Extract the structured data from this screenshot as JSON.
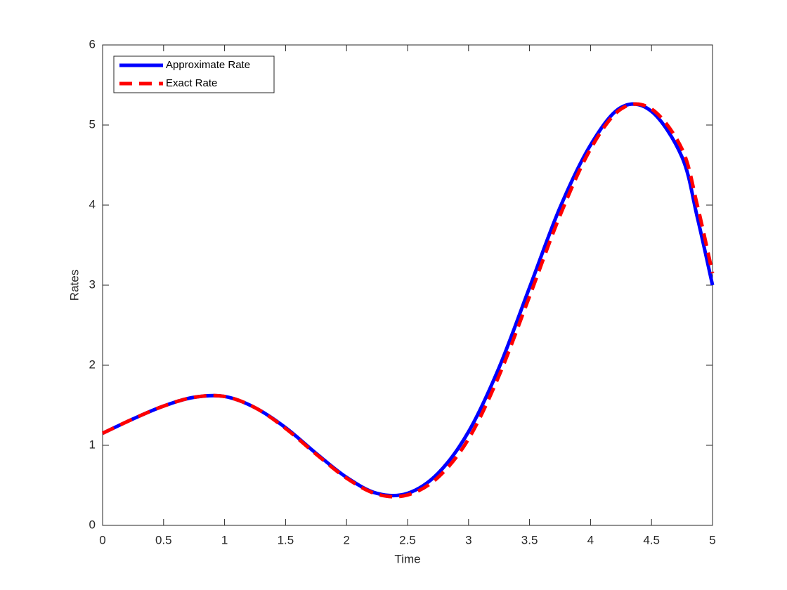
{
  "chart_data": {
    "type": "line",
    "x_label": "Time",
    "y_label": "Rates",
    "x": [
      0,
      0.25,
      0.5,
      0.75,
      1,
      1.25,
      1.5,
      1.75,
      2,
      2.25,
      2.5,
      2.75,
      3,
      3.25,
      3.5,
      3.75,
      4,
      4.25,
      4.5,
      4.75,
      4.875,
      5
    ],
    "series": [
      {
        "name": "Approximate Rate",
        "color": "#0000ff",
        "dash": false,
        "values": [
          1.15,
          1.33,
          1.49,
          1.6,
          1.61,
          1.47,
          1.22,
          0.9,
          0.6,
          0.4,
          0.4,
          0.65,
          1.17,
          1.97,
          2.97,
          3.97,
          4.75,
          5.22,
          5.17,
          4.6,
          3.85,
          3.0
        ]
      },
      {
        "name": "Exact Rate",
        "color": "#ff0000",
        "dash": true,
        "values": [
          1.15,
          1.33,
          1.49,
          1.6,
          1.61,
          1.47,
          1.21,
          0.89,
          0.59,
          0.39,
          0.38,
          0.6,
          1.08,
          1.87,
          2.86,
          3.87,
          4.7,
          5.2,
          5.2,
          4.7,
          4.0,
          3.15
        ]
      }
    ],
    "xlim": [
      0,
      5
    ],
    "xticks": [
      0,
      0.5,
      1,
      1.5,
      2,
      2.5,
      3,
      3.5,
      4,
      4.5,
      5
    ],
    "ylim": [
      0,
      6
    ],
    "yticks": [
      0,
      1,
      2,
      3,
      4,
      5,
      6
    ],
    "legend": "upper-left"
  }
}
